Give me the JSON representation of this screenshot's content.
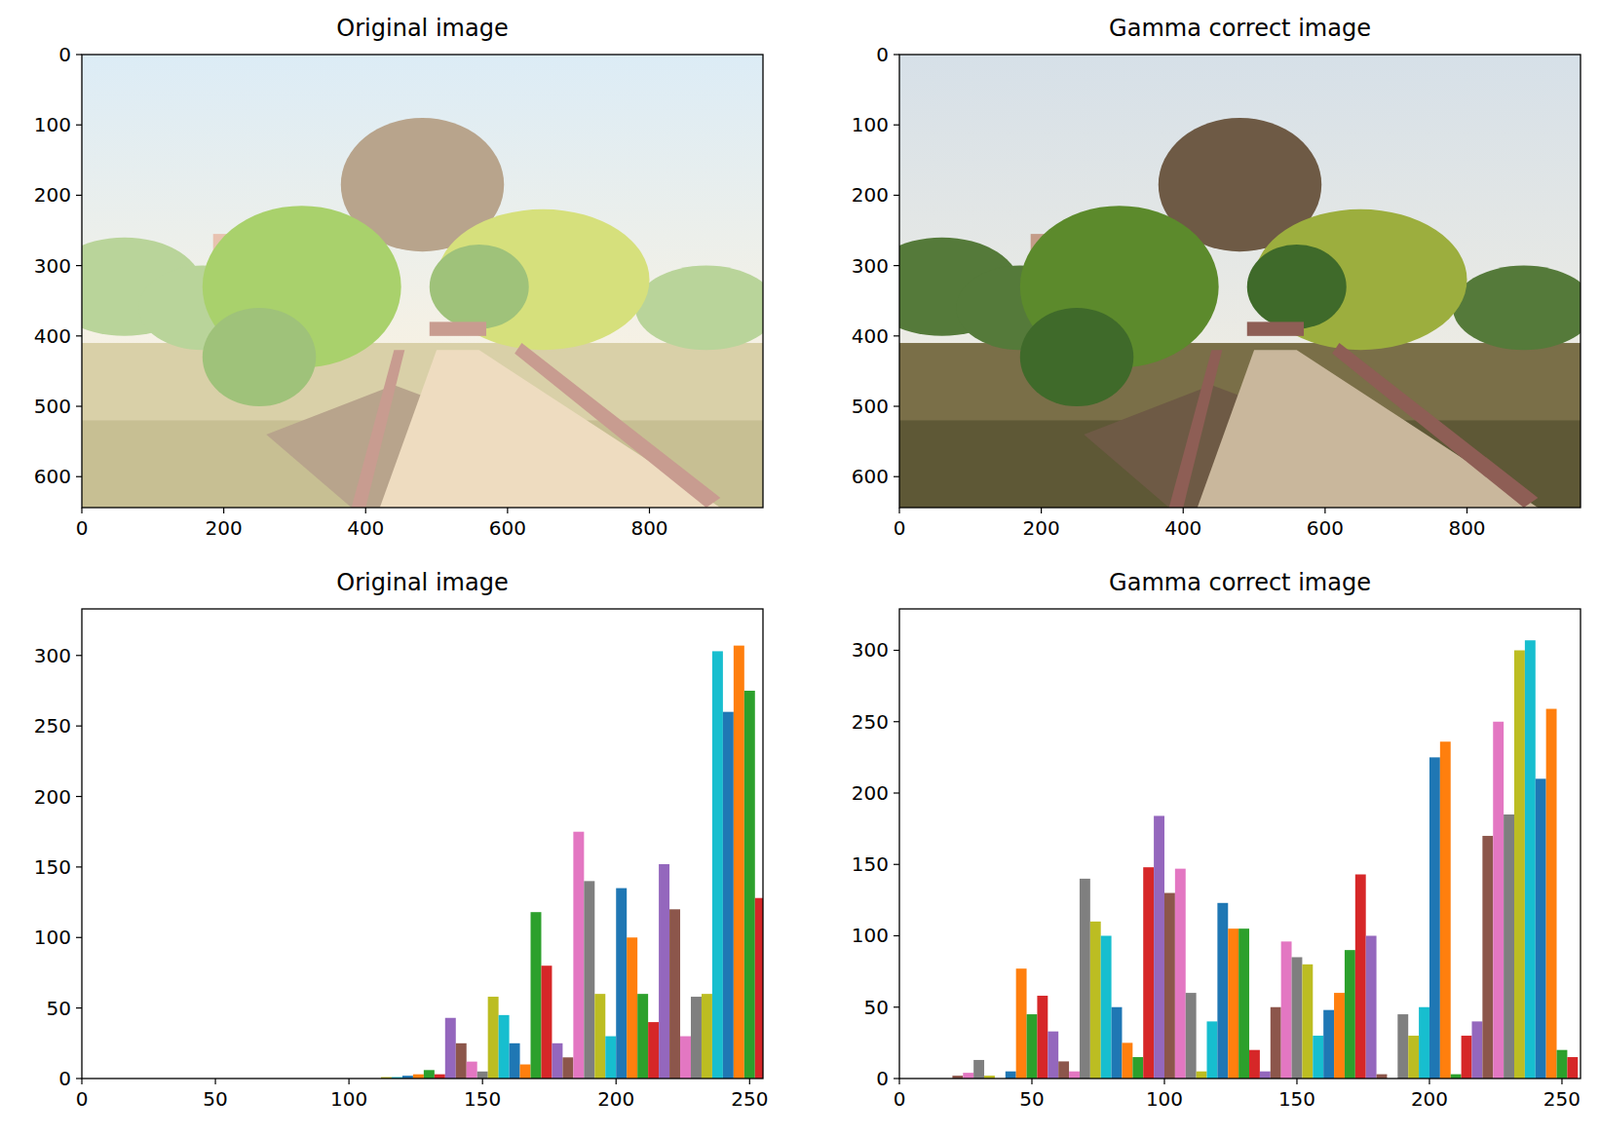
{
  "chart_data": [
    {
      "type": "image",
      "title": "Original image",
      "xlim": [
        0,
        960
      ],
      "ylim": [
        644,
        0
      ],
      "xticks": [
        0,
        200,
        400,
        600,
        800
      ],
      "yticks": [
        0,
        100,
        200,
        300,
        400,
        500,
        600
      ]
    },
    {
      "type": "image",
      "title": "Gamma correct image",
      "xlim": [
        0,
        960
      ],
      "ylim": [
        644,
        0
      ],
      "xticks": [
        0,
        200,
        400,
        600,
        800
      ],
      "yticks": [
        0,
        100,
        200,
        300,
        400,
        500,
        600
      ]
    },
    {
      "type": "histogram",
      "title": "Original image",
      "xlim": [
        0,
        255
      ],
      "ylim": [
        0,
        333
      ],
      "xticks": [
        0,
        50,
        100,
        150,
        200,
        250
      ],
      "yticks": [
        0,
        50,
        100,
        150,
        200,
        250,
        300
      ],
      "bins": [
        0,
        4,
        8,
        12,
        16,
        20,
        24,
        28,
        32,
        36,
        40,
        44,
        48,
        52,
        56,
        60,
        64,
        68,
        72,
        76,
        80,
        84,
        88,
        92,
        96,
        100,
        104,
        108,
        112,
        116,
        120,
        124,
        128,
        132,
        136,
        140,
        144,
        148,
        152,
        156,
        160,
        164,
        168,
        172,
        176,
        180,
        184,
        188,
        192,
        196,
        200,
        204,
        208,
        212,
        216,
        220,
        224,
        228,
        232,
        236,
        240,
        244,
        248,
        252,
        256
      ],
      "values": [
        0,
        0,
        0,
        0,
        0,
        0,
        0,
        0,
        0,
        0,
        0,
        0,
        0,
        0,
        0,
        0,
        0,
        0,
        0,
        0,
        0,
        0,
        0,
        0,
        0,
        0,
        0,
        0,
        1,
        1,
        2,
        3,
        6,
        3,
        43,
        25,
        12,
        5,
        58,
        45,
        25,
        10,
        118,
        80,
        25,
        15,
        175,
        140,
        60,
        30,
        135,
        100,
        60,
        40,
        152,
        120,
        30,
        58,
        60,
        303,
        260,
        307,
        275,
        128
      ],
      "colors": [
        "#1f77b4",
        "#ff7f0e",
        "#2ca02c",
        "#d62728",
        "#9467bd",
        "#8c564b",
        "#e377c2",
        "#7f7f7f",
        "#bcbd22",
        "#17becf",
        "#1f77b4",
        "#ff7f0e",
        "#2ca02c",
        "#d62728",
        "#9467bd",
        "#8c564b",
        "#e377c2",
        "#7f7f7f",
        "#bcbd22",
        "#17becf",
        "#1f77b4",
        "#ff7f0e",
        "#2ca02c",
        "#d62728",
        "#9467bd",
        "#8c564b",
        "#e377c2",
        "#7f7f7f",
        "#bcbd22",
        "#17becf",
        "#1f77b4",
        "#ff7f0e",
        "#2ca02c",
        "#d62728",
        "#9467bd",
        "#8c564b",
        "#e377c2",
        "#7f7f7f",
        "#bcbd22",
        "#17becf",
        "#1f77b4",
        "#ff7f0e",
        "#2ca02c",
        "#d62728",
        "#9467bd",
        "#8c564b",
        "#e377c2",
        "#7f7f7f",
        "#bcbd22",
        "#17becf",
        "#1f77b4",
        "#ff7f0e",
        "#2ca02c",
        "#d62728",
        "#9467bd",
        "#8c564b",
        "#e377c2",
        "#7f7f7f",
        "#bcbd22",
        "#17becf",
        "#1f77b4",
        "#ff7f0e",
        "#2ca02c",
        "#d62728"
      ]
    },
    {
      "type": "histogram",
      "title": "Gamma correct image",
      "xlim": [
        0,
        257
      ],
      "ylim": [
        0,
        329
      ],
      "xticks": [
        0,
        50,
        100,
        150,
        200,
        250
      ],
      "yticks": [
        0,
        50,
        100,
        150,
        200,
        250,
        300
      ],
      "bins": [
        0,
        4,
        8,
        12,
        16,
        20,
        24,
        28,
        32,
        36,
        40,
        44,
        48,
        52,
        56,
        60,
        64,
        68,
        72,
        76,
        80,
        84,
        88,
        92,
        96,
        100,
        104,
        108,
        112,
        116,
        120,
        124,
        128,
        132,
        136,
        140,
        144,
        148,
        152,
        156,
        160,
        164,
        168,
        172,
        176,
        180,
        184,
        188,
        192,
        196,
        200,
        204,
        208,
        212,
        216,
        220,
        224,
        228,
        232,
        236,
        240,
        244,
        248,
        252,
        256
      ],
      "values": [
        0,
        0,
        0,
        0,
        0,
        2,
        4,
        13,
        2,
        0,
        5,
        77,
        45,
        58,
        33,
        12,
        5,
        140,
        110,
        100,
        50,
        25,
        15,
        148,
        184,
        130,
        147,
        60,
        5,
        40,
        123,
        105,
        105,
        20,
        5,
        50,
        96,
        85,
        80,
        30,
        48,
        60,
        90,
        143,
        100,
        3,
        0,
        45,
        30,
        50,
        225,
        236,
        3,
        30,
        40,
        170,
        250,
        185,
        300,
        307,
        210,
        259,
        20,
        15
      ],
      "colors": [
        "#1f77b4",
        "#ff7f0e",
        "#2ca02c",
        "#d62728",
        "#9467bd",
        "#8c564b",
        "#e377c2",
        "#7f7f7f",
        "#bcbd22",
        "#17becf",
        "#1f77b4",
        "#ff7f0e",
        "#2ca02c",
        "#d62728",
        "#9467bd",
        "#8c564b",
        "#e377c2",
        "#7f7f7f",
        "#bcbd22",
        "#17becf",
        "#1f77b4",
        "#ff7f0e",
        "#2ca02c",
        "#d62728",
        "#9467bd",
        "#8c564b",
        "#e377c2",
        "#7f7f7f",
        "#bcbd22",
        "#17becf",
        "#1f77b4",
        "#ff7f0e",
        "#2ca02c",
        "#d62728",
        "#9467bd",
        "#8c564b",
        "#e377c2",
        "#7f7f7f",
        "#bcbd22",
        "#17becf",
        "#1f77b4",
        "#ff7f0e",
        "#2ca02c",
        "#d62728",
        "#9467bd",
        "#8c564b",
        "#e377c2",
        "#7f7f7f",
        "#bcbd22",
        "#17becf",
        "#1f77b4",
        "#ff7f0e",
        "#2ca02c",
        "#d62728",
        "#9467bd",
        "#8c564b",
        "#e377c2",
        "#7f7f7f",
        "#bcbd22",
        "#17becf",
        "#1f77b4",
        "#ff7f0e",
        "#2ca02c",
        "#d62728"
      ]
    }
  ]
}
